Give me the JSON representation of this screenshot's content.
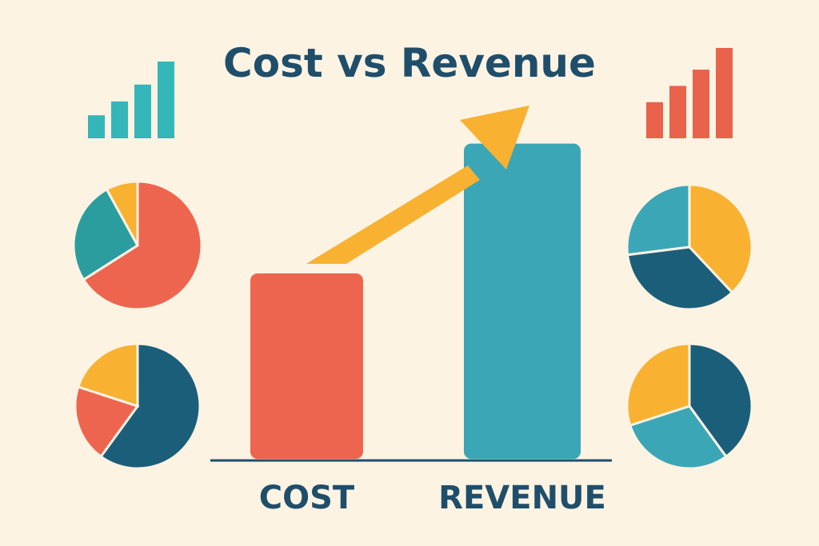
{
  "chart_data": {
    "type": "bar",
    "title": "Cost vs Revenue",
    "categories": [
      "COST",
      "REVENUE"
    ],
    "values": [
      40,
      68
    ],
    "ylim": [
      0,
      70
    ],
    "grid": false,
    "trend_arrow": "up",
    "colors": {
      "background": "#fcf3e3",
      "text": "#1f4e6b",
      "cost": "#ee654f",
      "revenue": "#3ba6b6",
      "arrow": "#f8b131",
      "axis": "#1f4e6b"
    }
  },
  "decorations": {
    "mini_bar_charts": [
      {
        "values": [
          30,
          48,
          70,
          100
        ],
        "color": "#35b6b8"
      },
      {
        "values": [
          40,
          58,
          76,
          100
        ],
        "color": "#e9624c"
      }
    ],
    "pie_charts": [
      {
        "slices": [
          66,
          26,
          8
        ],
        "colors": [
          "#ee654f",
          "#2b9d9f",
          "#f8b131"
        ]
      },
      {
        "slices": [
          38,
          35,
          27
        ],
        "colors": [
          "#f8b131",
          "#1b5e7a",
          "#3ba6b6"
        ]
      },
      {
        "slices": [
          60,
          20,
          20
        ],
        "colors": [
          "#1b5e7a",
          "#ee654f",
          "#f8b131"
        ]
      },
      {
        "slices": [
          40,
          30,
          30
        ],
        "colors": [
          "#1b5e7a",
          "#3ba6b6",
          "#f8b131"
        ]
      }
    ]
  }
}
